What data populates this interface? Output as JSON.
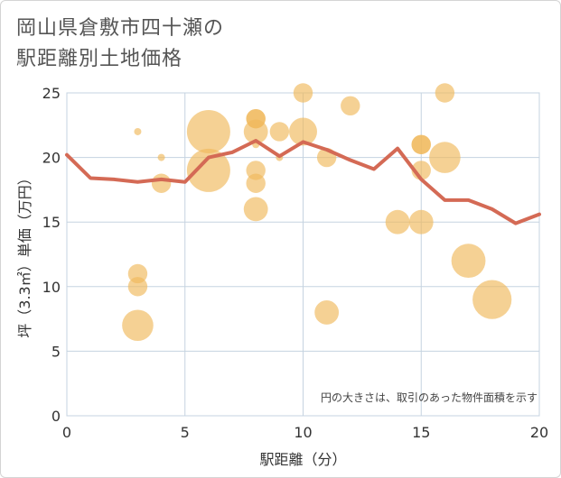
{
  "title": {
    "line1": "岡山県倉敷市四十瀬の",
    "line2": "駅距離別土地価格"
  },
  "chart_data": {
    "type": "scatter",
    "xlabel": "駅距離（分）",
    "ylabel": "坪（3.3㎡）単価（万円）",
    "xlim": [
      0,
      20
    ],
    "ylim": [
      0,
      25
    ],
    "x_ticks": [
      0,
      5,
      10,
      15,
      20
    ],
    "y_ticks": [
      0,
      5,
      10,
      15,
      20,
      25
    ],
    "note": "円の大きさは、取引のあった物件面積を示す",
    "colors": {
      "bubble": "#f0b85a",
      "line": "#d46a55",
      "grid": "#c5d3e0"
    },
    "scatter": [
      {
        "x": 3,
        "y": 22,
        "size": 1
      },
      {
        "x": 3,
        "y": 11,
        "size": 2
      },
      {
        "x": 3,
        "y": 10,
        "size": 2
      },
      {
        "x": 3,
        "y": 7,
        "size": 5
      },
      {
        "x": 4,
        "y": 20,
        "size": 1
      },
      {
        "x": 4,
        "y": 18,
        "size": 2
      },
      {
        "x": 6,
        "y": 22,
        "size": 10
      },
      {
        "x": 6,
        "y": 19,
        "size": 10
      },
      {
        "x": 8,
        "y": 23,
        "size": 2
      },
      {
        "x": 8,
        "y": 23,
        "size": 2
      },
      {
        "x": 8,
        "y": 22,
        "size": 3
      },
      {
        "x": 8,
        "y": 21,
        "size": 1
      },
      {
        "x": 8,
        "y": 19,
        "size": 2
      },
      {
        "x": 8,
        "y": 18,
        "size": 2
      },
      {
        "x": 8,
        "y": 16,
        "size": 3
      },
      {
        "x": 9,
        "y": 22,
        "size": 2
      },
      {
        "x": 9,
        "y": 20,
        "size": 1
      },
      {
        "x": 10,
        "y": 25,
        "size": 2
      },
      {
        "x": 10,
        "y": 22,
        "size": 4
      },
      {
        "x": 11,
        "y": 20,
        "size": 2
      },
      {
        "x": 11,
        "y": 8,
        "size": 3
      },
      {
        "x": 12,
        "y": 24,
        "size": 2
      },
      {
        "x": 14,
        "y": 15,
        "size": 3
      },
      {
        "x": 15,
        "y": 21,
        "size": 2
      },
      {
        "x": 15,
        "y": 21,
        "size": 2
      },
      {
        "x": 15,
        "y": 19,
        "size": 2
      },
      {
        "x": 15,
        "y": 15,
        "size": 3
      },
      {
        "x": 16,
        "y": 25,
        "size": 2
      },
      {
        "x": 16,
        "y": 20,
        "size": 5
      },
      {
        "x": 17,
        "y": 12,
        "size": 6
      },
      {
        "x": 18,
        "y": 9,
        "size": 8
      }
    ],
    "line": {
      "x": [
        0,
        1,
        2,
        3,
        4,
        5,
        6,
        7,
        8,
        9,
        10,
        11,
        12,
        13,
        14,
        15,
        16,
        17,
        18,
        19,
        20
      ],
      "y": [
        20.2,
        18.4,
        18.3,
        18.1,
        18.3,
        18.1,
        20.0,
        20.4,
        21.3,
        20.1,
        21.2,
        20.6,
        19.8,
        19.1,
        20.7,
        18.3,
        16.7,
        16.7,
        16.0,
        14.9,
        15.6
      ]
    }
  }
}
